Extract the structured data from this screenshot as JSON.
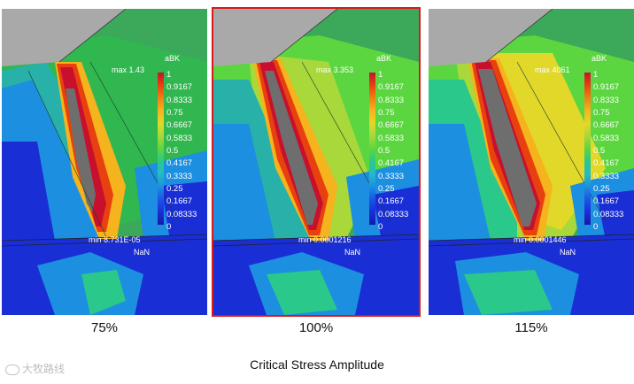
{
  "panels": [
    {
      "caption": "75%",
      "legend_title": "aBK",
      "max_label": "max 1.43",
      "min_label": "min 8.731E-05",
      "nan_label": "NaN",
      "highlighted": false
    },
    {
      "caption": "100%",
      "legend_title": "aBK",
      "max_label": "max 3.353",
      "min_label": "min 0.0001216",
      "nan_label": "NaN",
      "highlighted": true
    },
    {
      "caption": "115%",
      "legend_title": "aBK",
      "max_label": "max 4061",
      "min_label": "min 0.0001446",
      "nan_label": "NaN",
      "highlighted": false
    }
  ],
  "legend_ticks": [
    "1",
    "0.9167",
    "0.8333",
    "0.75",
    "0.6667",
    "0.5833",
    "0.5",
    "0.4167",
    "0.3333",
    "0.25",
    "0.1667",
    "0.08333",
    "0"
  ],
  "legend_colors": [
    "#c8102e",
    "#e8410f",
    "#f07f12",
    "#f5b31e",
    "#e2d82a",
    "#a8d83a",
    "#5cd640",
    "#2ac88a",
    "#23bcc4",
    "#1d8fe0",
    "#1b55e6",
    "#1a2ed6",
    "#141aa8"
  ],
  "figure_title": "Critical Stress Amplitude",
  "watermark": "大牧路线",
  "colors": {
    "highlight_border": "#d9191c",
    "hotspot": "#6e6e6e",
    "top_gray": "#a9a9a9"
  }
}
